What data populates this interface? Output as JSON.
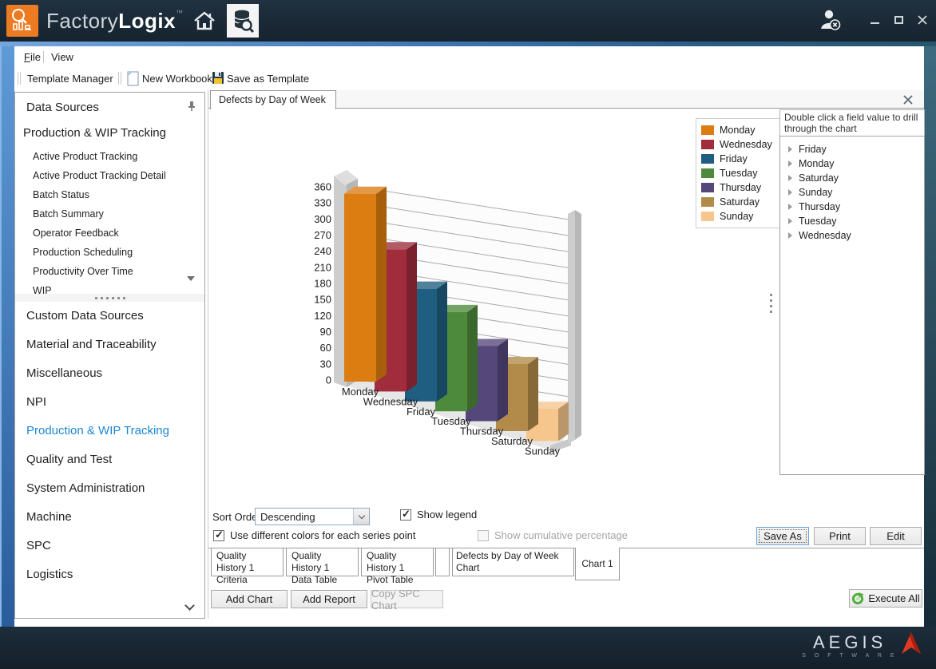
{
  "titlebar": {
    "brand_a": "Factory",
    "brand_b": "Logix",
    "trademark": "™"
  },
  "menubar": {
    "file": "File",
    "view": "View"
  },
  "toolbar": {
    "template_manager": "Template Manager",
    "new_workbook": "New Workbook",
    "save_as_template": "Save as Template"
  },
  "sidebar": {
    "title": "Data Sources",
    "group_title": "Production & WIP Tracking",
    "group_items": [
      "Active Product Tracking",
      "Active Product Tracking Detail",
      "Batch Status",
      "Batch Summary",
      "Operator Feedback",
      "Production Scheduling",
      "Productivity Over Time",
      "WIP"
    ],
    "categories": [
      {
        "label": "Custom Data Sources",
        "selected": false
      },
      {
        "label": "Material and Traceability",
        "selected": false
      },
      {
        "label": "Miscellaneous",
        "selected": false
      },
      {
        "label": "NPI",
        "selected": false
      },
      {
        "label": "Production & WIP Tracking",
        "selected": true
      },
      {
        "label": "Quality and Test",
        "selected": false
      },
      {
        "label": "System Administration",
        "selected": false
      },
      {
        "label": "Machine",
        "selected": false
      },
      {
        "label": "SPC",
        "selected": false
      },
      {
        "label": "Logistics",
        "selected": false
      }
    ]
  },
  "main": {
    "doc_tab": "Defects by Day of Week",
    "drill_hint": "Double click a field value to drill\nthrough the chart",
    "drill_fields": [
      "Friday",
      "Monday",
      "Saturday",
      "Sunday",
      "Thursday",
      "Tuesday",
      "Wednesday"
    ],
    "sort_order_label": "Sort Order:",
    "sort_order_value": "Descending",
    "checkboxes": {
      "show_legend": {
        "label": "Show legend",
        "checked": true
      },
      "use_colors": {
        "label": "Use different colors for each series point",
        "checked": true
      },
      "cumulative": {
        "label": "Show cumulative percentage",
        "checked": false,
        "enabled": false
      }
    },
    "buttons": {
      "save_as": "Save As",
      "print": "Print",
      "edit": "Edit",
      "add_chart": "Add Chart",
      "add_report": "Add Report",
      "copy_spc": "Copy SPC Chart",
      "execute_all": "Execute All"
    },
    "bottom_tabs": [
      "Quality History 1\nCriteria",
      "Quality History 1\nData Table",
      "Quality History 1\nPivot Table",
      "",
      "Defects by Day of Week Chart",
      "Chart 1"
    ]
  },
  "chart_data": {
    "type": "bar",
    "projection": "3d",
    "title": "Defects by Day of Week",
    "categories": [
      "Monday",
      "Wednesday",
      "Friday",
      "Tuesday",
      "Thursday",
      "Saturday",
      "Sunday"
    ],
    "values": [
      350,
      265,
      210,
      185,
      140,
      125,
      60
    ],
    "colors": [
      "#DC7D11",
      "#A02C3C",
      "#1F5E80",
      "#4E8A3C",
      "#55477A",
      "#B28B4A",
      "#F6C68D"
    ],
    "ylim": [
      0,
      360
    ],
    "ytick_step": 30,
    "grid": true,
    "legend_position": "top-right",
    "sort": "descending"
  },
  "colors": {
    "accent_blue": "#1B87D2",
    "brand_orange": "#ED7B21"
  },
  "footer": {
    "brand": "AEGIS",
    "sub": "S O F T W A R E"
  }
}
